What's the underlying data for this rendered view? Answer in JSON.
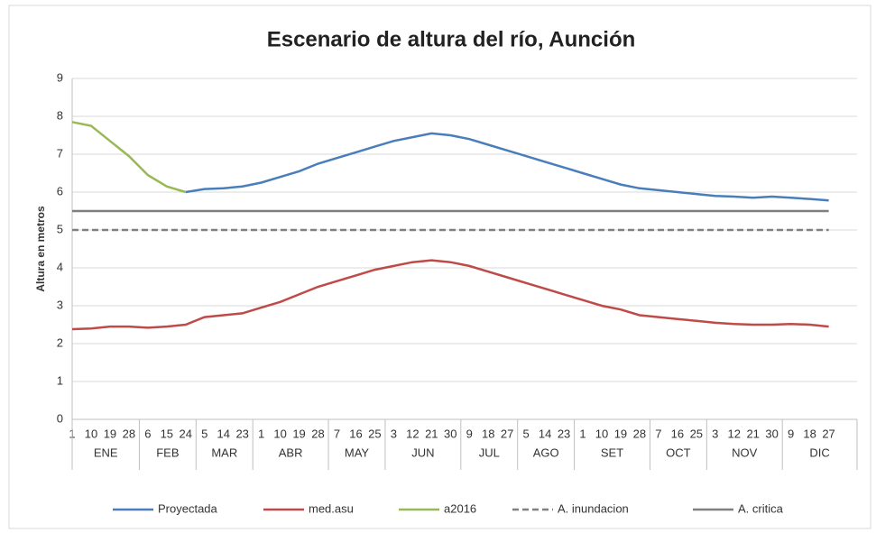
{
  "chart_data": {
    "type": "line",
    "title": "Escenario de altura del río, Aunción",
    "y_label": "Altura en metros",
    "categories": [
      "1",
      "10",
      "19",
      "28",
      "6",
      "15",
      "24",
      "5",
      "14",
      "23",
      "1",
      "10",
      "19",
      "28",
      "7",
      "16",
      "25",
      "3",
      "12",
      "21",
      "30",
      "9",
      "18",
      "27",
      "5",
      "14",
      "23",
      "1",
      "10",
      "19",
      "28",
      "7",
      "16",
      "25",
      "3",
      "12",
      "21",
      "30",
      "9",
      "18",
      "27"
    ],
    "months": [
      "ENE",
      "FEB",
      "MAR",
      "ABR",
      "MAY",
      "JUN",
      "JUL",
      "AGO",
      "SET",
      "OCT",
      "NOV",
      "DIC"
    ],
    "ylim": [
      0,
      9
    ],
    "yticks": [
      0,
      1,
      2,
      3,
      4,
      5,
      6,
      7,
      8,
      9
    ],
    "grid": true,
    "legend": "bottom",
    "series": [
      {
        "name": "Proyectada",
        "color": "#4a7ebb",
        "dashed": false,
        "values": [
          null,
          null,
          null,
          null,
          null,
          null,
          6.0,
          6.08,
          6.1,
          6.15,
          6.25,
          6.4,
          6.55,
          6.75,
          6.9,
          7.05,
          7.2,
          7.35,
          7.45,
          7.55,
          7.5,
          7.4,
          7.25,
          7.1,
          6.95,
          6.8,
          6.65,
          6.5,
          6.35,
          6.2,
          6.1,
          6.05,
          6.0,
          5.95,
          5.9,
          5.88,
          5.85,
          5.88,
          5.85,
          5.82,
          5.78
        ]
      },
      {
        "name": "med.asu",
        "color": "#be4b48",
        "dashed": false,
        "values": [
          2.38,
          2.4,
          2.45,
          2.45,
          2.42,
          2.45,
          2.5,
          2.7,
          2.75,
          2.8,
          2.95,
          3.1,
          3.3,
          3.5,
          3.65,
          3.8,
          3.95,
          4.05,
          4.15,
          4.2,
          4.15,
          4.05,
          3.9,
          3.75,
          3.6,
          3.45,
          3.3,
          3.15,
          3.0,
          2.9,
          2.75,
          2.7,
          2.65,
          2.6,
          2.55,
          2.52,
          2.5,
          2.5,
          2.52,
          2.5,
          2.45
        ]
      },
      {
        "name": "a2016",
        "color": "#98b954",
        "dashed": false,
        "values": [
          7.85,
          7.75,
          7.35,
          6.95,
          6.45,
          6.15,
          6.0,
          null,
          null,
          null,
          null,
          null,
          null,
          null,
          null,
          null,
          null,
          null,
          null,
          null,
          null,
          null,
          null,
          null,
          null,
          null,
          null,
          null,
          null,
          null,
          null,
          null,
          null,
          null,
          null,
          null,
          null,
          null,
          null,
          null,
          null
        ]
      },
      {
        "name": "A. inundacion",
        "color": "#808080",
        "dashed": true,
        "values": [
          5,
          5,
          5,
          5,
          5,
          5,
          5,
          5,
          5,
          5,
          5,
          5,
          5,
          5,
          5,
          5,
          5,
          5,
          5,
          5,
          5,
          5,
          5,
          5,
          5,
          5,
          5,
          5,
          5,
          5,
          5,
          5,
          5,
          5,
          5,
          5,
          5,
          5,
          5,
          5,
          5
        ]
      },
      {
        "name": "A. critica",
        "color": "#7f7f7f",
        "dashed": false,
        "values": [
          5.5,
          5.5,
          5.5,
          5.5,
          5.5,
          5.5,
          5.5,
          5.5,
          5.5,
          5.5,
          5.5,
          5.5,
          5.5,
          5.5,
          5.5,
          5.5,
          5.5,
          5.5,
          5.5,
          5.5,
          5.5,
          5.5,
          5.5,
          5.5,
          5.5,
          5.5,
          5.5,
          5.5,
          5.5,
          5.5,
          5.5,
          5.5,
          5.5,
          5.5,
          5.5,
          5.5,
          5.5,
          5.5,
          5.5,
          5.5,
          5.5
        ]
      }
    ]
  }
}
